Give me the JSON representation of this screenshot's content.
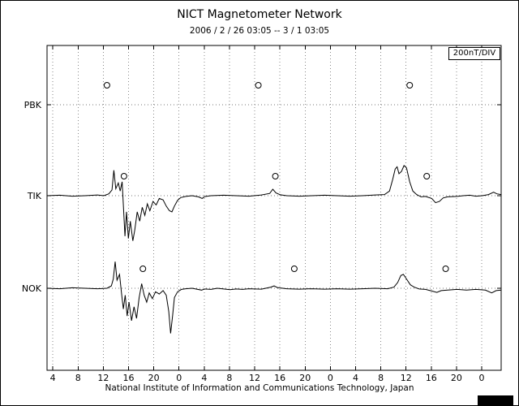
{
  "footer": {
    "caption": "National Institute of Information and Communications Technology, Japan"
  },
  "chart_data": {
    "type": "line",
    "title": "NICT Magnetometer Network",
    "subtitle": "2006 / 2 / 26   03:05  --  3 / 1   03:05",
    "scale_label": "200nT/DIV",
    "nT_per_div": 200,
    "x_hours_total": 72,
    "x_axis_note": "hour of day, 3 consecutive days starting 2006-02-26 03:05",
    "grid": "dotted vertical lines at each 4-hour tick, dotted horizontal baseline per station",
    "legend_position": "none",
    "x_ticks": {
      "times": [
        0.92,
        4.92,
        8.92,
        12.92,
        16.92,
        20.92,
        24.92,
        28.92,
        32.92,
        36.92,
        40.92,
        44.92,
        48.92,
        52.92,
        56.92,
        60.92,
        64.92,
        68.92
      ],
      "labels": [
        "4",
        "8",
        "12",
        "16",
        "20",
        "0",
        "4",
        "8",
        "12",
        "16",
        "20",
        "0",
        "4",
        "8",
        "12",
        "16",
        "20",
        "0"
      ]
    },
    "stations": [
      {
        "name": "PBK",
        "marker_times_h": [
          9.5,
          33.5,
          57.5
        ],
        "points": []
      },
      {
        "name": "TIK",
        "marker_times_h": [
          12.2,
          36.2,
          60.2
        ],
        "points": [
          [
            0,
            0
          ],
          [
            2,
            2
          ],
          [
            4,
            -2
          ],
          [
            6,
            0
          ],
          [
            8,
            3
          ],
          [
            9,
            0
          ],
          [
            9.8,
            8
          ],
          [
            10.3,
            25
          ],
          [
            10.6,
            110
          ],
          [
            10.9,
            30
          ],
          [
            11.3,
            55
          ],
          [
            11.6,
            20
          ],
          [
            11.9,
            60
          ],
          [
            12.1,
            -40
          ],
          [
            12.35,
            -175
          ],
          [
            12.6,
            -70
          ],
          [
            12.9,
            -185
          ],
          [
            13.2,
            -110
          ],
          [
            13.6,
            -195
          ],
          [
            13.9,
            -150
          ],
          [
            14.3,
            -70
          ],
          [
            14.7,
            -110
          ],
          [
            15.1,
            -50
          ],
          [
            15.5,
            -85
          ],
          [
            15.9,
            -35
          ],
          [
            16.3,
            -65
          ],
          [
            16.8,
            -25
          ],
          [
            17.3,
            -40
          ],
          [
            17.8,
            -12
          ],
          [
            18.4,
            -18
          ],
          [
            18.9,
            -45
          ],
          [
            19.4,
            -65
          ],
          [
            19.8,
            -70
          ],
          [
            20.2,
            -45
          ],
          [
            20.7,
            -20
          ],
          [
            21.2,
            -8
          ],
          [
            22,
            -3
          ],
          [
            23,
            0
          ],
          [
            24,
            -5
          ],
          [
            24.6,
            -12
          ],
          [
            25,
            -4
          ],
          [
            26,
            0
          ],
          [
            28,
            2
          ],
          [
            30,
            0
          ],
          [
            32,
            -2
          ],
          [
            34,
            3
          ],
          [
            35.3,
            10
          ],
          [
            35.8,
            28
          ],
          [
            36.3,
            12
          ],
          [
            37,
            4
          ],
          [
            38,
            0
          ],
          [
            40,
            -2
          ],
          [
            42,
            0
          ],
          [
            44,
            2
          ],
          [
            46,
            0
          ],
          [
            48,
            -2
          ],
          [
            50,
            0
          ],
          [
            52,
            3
          ],
          [
            53.5,
            5
          ],
          [
            54.3,
            20
          ],
          [
            54.8,
            70
          ],
          [
            55.2,
            115
          ],
          [
            55.5,
            125
          ],
          [
            55.8,
            95
          ],
          [
            56.2,
            105
          ],
          [
            56.6,
            130
          ],
          [
            57.0,
            120
          ],
          [
            57.5,
            60
          ],
          [
            58.0,
            20
          ],
          [
            58.6,
            5
          ],
          [
            59.3,
            -5
          ],
          [
            60,
            -3
          ],
          [
            61,
            -12
          ],
          [
            61.6,
            -30
          ],
          [
            62.2,
            -25
          ],
          [
            62.8,
            -10
          ],
          [
            63.5,
            -5
          ],
          [
            65,
            -3
          ],
          [
            66,
            0
          ],
          [
            67,
            2
          ],
          [
            68,
            -2
          ],
          [
            69,
            0
          ],
          [
            70,
            5
          ],
          [
            70.8,
            15
          ],
          [
            71.3,
            8
          ],
          [
            72,
            5
          ]
        ]
      },
      {
        "name": "NOK",
        "marker_times_h": [
          15.2,
          39.2,
          63.2
        ],
        "points": [
          [
            0,
            0
          ],
          [
            2,
            -2
          ],
          [
            4,
            2
          ],
          [
            6,
            0
          ],
          [
            8,
            -2
          ],
          [
            9.5,
            0
          ],
          [
            10.2,
            10
          ],
          [
            10.5,
            40
          ],
          [
            10.8,
            115
          ],
          [
            11.1,
            35
          ],
          [
            11.5,
            60
          ],
          [
            11.8,
            -20
          ],
          [
            12.1,
            -90
          ],
          [
            12.4,
            -30
          ],
          [
            12.7,
            -120
          ],
          [
            13.0,
            -60
          ],
          [
            13.4,
            -140
          ],
          [
            13.8,
            -80
          ],
          [
            14.2,
            -130
          ],
          [
            14.6,
            -40
          ],
          [
            15.0,
            20
          ],
          [
            15.4,
            -30
          ],
          [
            15.8,
            -60
          ],
          [
            16.2,
            -20
          ],
          [
            16.7,
            -45
          ],
          [
            17.2,
            -15
          ],
          [
            17.8,
            -25
          ],
          [
            18.4,
            -10
          ],
          [
            18.9,
            -30
          ],
          [
            19.3,
            -100
          ],
          [
            19.6,
            -195
          ],
          [
            19.9,
            -120
          ],
          [
            20.2,
            -40
          ],
          [
            20.7,
            -15
          ],
          [
            21.3,
            -5
          ],
          [
            22,
            -2
          ],
          [
            23,
            0
          ],
          [
            24.5,
            -8
          ],
          [
            25,
            -3
          ],
          [
            26,
            -5
          ],
          [
            27,
            0
          ],
          [
            28,
            -3
          ],
          [
            29,
            -6
          ],
          [
            30,
            -3
          ],
          [
            31,
            -5
          ],
          [
            32,
            -2
          ],
          [
            34,
            -4
          ],
          [
            35.5,
            5
          ],
          [
            36,
            10
          ],
          [
            36.5,
            3
          ],
          [
            38,
            -2
          ],
          [
            40,
            -4
          ],
          [
            42,
            -2
          ],
          [
            44,
            -4
          ],
          [
            46,
            -2
          ],
          [
            48,
            -4
          ],
          [
            50,
            -2
          ],
          [
            52,
            0
          ],
          [
            54,
            -2
          ],
          [
            55,
            5
          ],
          [
            55.6,
            25
          ],
          [
            56.1,
            55
          ],
          [
            56.5,
            60
          ],
          [
            57.0,
            40
          ],
          [
            57.6,
            15
          ],
          [
            58.2,
            5
          ],
          [
            59,
            -3
          ],
          [
            60,
            -5
          ],
          [
            61,
            -12
          ],
          [
            61.8,
            -18
          ],
          [
            62.5,
            -10
          ],
          [
            63.5,
            -8
          ],
          [
            65,
            -5
          ],
          [
            66.5,
            -8
          ],
          [
            68,
            -5
          ],
          [
            69.5,
            -8
          ],
          [
            70.5,
            -20
          ],
          [
            71.2,
            -10
          ],
          [
            72,
            -8
          ]
        ]
      }
    ]
  }
}
